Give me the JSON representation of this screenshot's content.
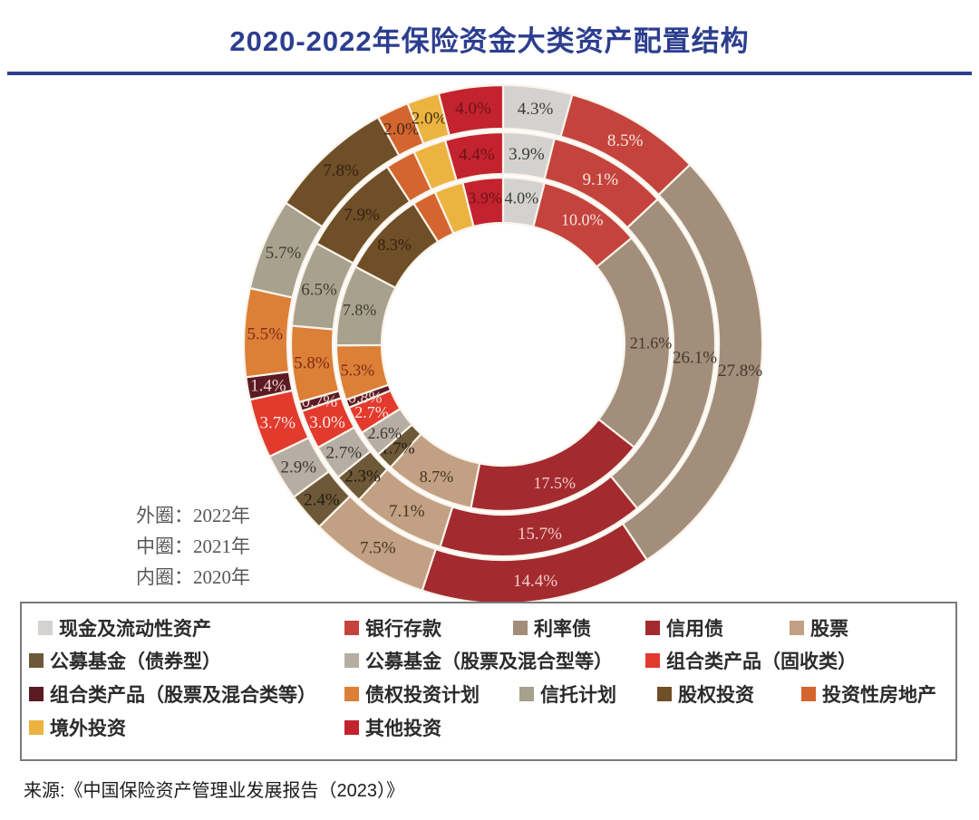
{
  "title": "2020-2022年保险资金大类资产配置结构",
  "ring_note": {
    "outer": "外圈：2022年",
    "middle": "中圈：2021年",
    "inner": "内圈：2020年"
  },
  "source": "来源:《中国保险资产管理业发展报告（2023）》",
  "colors": {
    "title_blue": "#2c3e8f",
    "divider": "#2c3e8f",
    "legend_border": "#7a7a7a",
    "segment_stroke": "#faf3ea"
  },
  "chart_data": {
    "type": "donut",
    "subtype": "multi-ring",
    "direction": "clockwise",
    "start_angle_deg": 0,
    "legend_position": "bottom",
    "categories": [
      {
        "key": "cash",
        "name": "现金及流动性资产",
        "color": "#d3d2d0",
        "label_color": "#3d3d3d"
      },
      {
        "key": "bank-deposits",
        "name": "银行存款",
        "color": "#c4443d",
        "label_color": "#f6e3de"
      },
      {
        "key": "interest-rate-bonds",
        "name": "利率债",
        "color": "#a28e7b",
        "label_color": "#46382c"
      },
      {
        "key": "credit-bonds",
        "name": "信用债",
        "color": "#a32b2f",
        "label_color": "#f0cbc7"
      },
      {
        "key": "stocks",
        "name": "股票",
        "color": "#c1a083",
        "label_color": "#463521"
      },
      {
        "key": "mutual-funds-bond",
        "name": "公募基金（债券型）",
        "color": "#6d5838",
        "label_color": "#241c12"
      },
      {
        "key": "mutual-funds-equity",
        "name": "公募基金（股票及混合型等）",
        "color": "#b6aea3",
        "label_color": "#3c3831"
      },
      {
        "key": "portfolio-products-fixed-income",
        "name": "组合类产品（固收类）",
        "color": "#e23a2d",
        "label_color": "#fdeae5"
      },
      {
        "key": "portfolio-products-equity",
        "name": "组合类产品（股票及混合类等）",
        "color": "#5c1b22",
        "label_color": "#edd2d2"
      },
      {
        "key": "debt-investment-plans",
        "name": "债权投资计划",
        "color": "#dc7f37",
        "label_color": "#7e2a16"
      },
      {
        "key": "trust-plans",
        "name": "信托计划",
        "color": "#a7a18d",
        "label_color": "#413e35"
      },
      {
        "key": "equity-investment",
        "name": "股权投资",
        "color": "#6f4f28",
        "label_color": "#36200f"
      },
      {
        "key": "investment-real-estate",
        "name": "投资性房地产",
        "color": "#d4652e",
        "label_color": "#3f2a16"
      },
      {
        "key": "overseas-investment",
        "name": "境外投资",
        "color": "#ecb341",
        "label_color": "#3e3012"
      },
      {
        "key": "other-investment",
        "name": "其他投资",
        "color": "#c2232e",
        "label_color": "#6e1218"
      }
    ],
    "rings": [
      {
        "name": "2022",
        "position": "outer",
        "values": [
          4.3,
          8.5,
          27.8,
          14.4,
          7.5,
          2.4,
          2.9,
          3.7,
          1.4,
          5.5,
          5.7,
          7.8,
          2.0,
          2.0,
          4.0
        ],
        "labels": [
          "4.3%",
          "8.5%",
          "27.8%",
          "14.4%",
          "7.5%",
          "2.4%",
          "2.9%",
          "3.7%",
          "1.4%",
          "5.5%",
          "5.7%",
          "7.8%",
          "2.0%",
          "2.0%",
          "4.0%"
        ]
      },
      {
        "name": "2021",
        "position": "middle",
        "values": [
          3.9,
          9.1,
          26.1,
          15.7,
          7.1,
          2.3,
          2.7,
          3.0,
          0.7,
          5.8,
          6.5,
          7.9,
          2.3,
          2.5,
          4.4
        ],
        "labels": [
          "3.9%",
          "9.1%",
          "26.1%",
          "15.7%",
          "7.1%",
          "2.3%",
          "2.7%",
          "3.0%",
          "0.7%",
          "5.8%",
          "6.5%",
          "7.9%",
          "",
          "",
          "4.4%"
        ]
      },
      {
        "name": "2020",
        "position": "inner",
        "values": [
          4.0,
          10.0,
          21.6,
          17.5,
          8.7,
          1.7,
          2.6,
          2.7,
          0.8,
          5.3,
          7.8,
          8.3,
          2.3,
          2.8,
          3.9
        ],
        "labels": [
          "4.0%",
          "10.0%",
          "21.6%",
          "17.5%",
          "8.7%",
          "1.7%",
          "2.6%",
          "2.7%",
          "0.8%",
          "5.3%",
          "7.8%",
          "8.3%",
          "",
          "",
          "3.9%"
        ]
      }
    ]
  },
  "legend": {
    "rows": [
      [
        0,
        1,
        2,
        3,
        4
      ],
      [
        5,
        6,
        7
      ],
      [
        8,
        9,
        10,
        11,
        12
      ],
      [
        13,
        14
      ]
    ]
  }
}
